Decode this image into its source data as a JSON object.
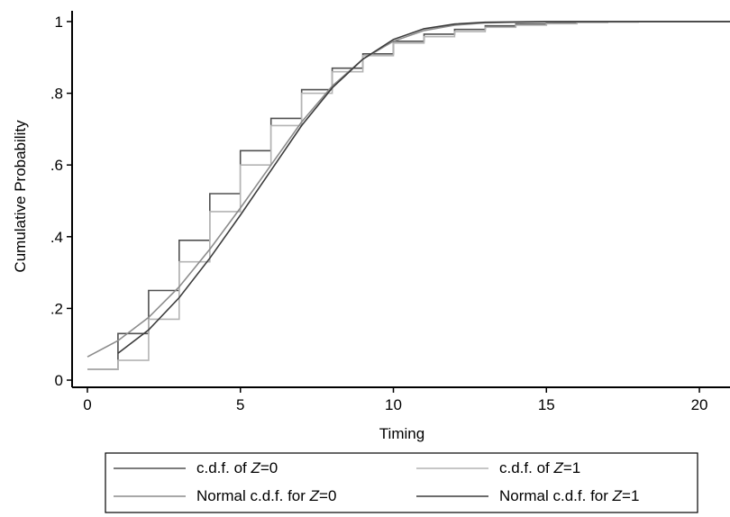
{
  "chart_data": {
    "type": "line",
    "title": "",
    "xlabel": "Timing",
    "ylabel": "Cumulative Probability",
    "xlim": [
      -0.5,
      21
    ],
    "ylim": [
      -0.02,
      1.03
    ],
    "x_ticks": [
      0,
      5,
      10,
      15,
      20
    ],
    "x_tick_labels": [
      "0",
      "5",
      "10",
      "15",
      "20"
    ],
    "y_ticks": [
      0,
      0.2,
      0.4,
      0.6,
      0.8,
      1
    ],
    "y_tick_labels": [
      "0",
      ".2",
      ".4",
      ".6",
      ".8",
      "1"
    ],
    "grid": false,
    "legend_position": "bottom",
    "series": [
      {
        "name": "c.d.f. of Z=0",
        "legend_label": "c.d.f. of ",
        "legend_var": "Z",
        "legend_suffix": "=0",
        "kind": "step",
        "color": "#505050",
        "x": [
          0,
          1,
          2,
          3,
          4,
          5,
          6,
          7,
          8,
          9,
          10,
          11,
          12,
          13,
          14,
          15,
          16,
          17,
          18,
          19,
          20,
          21
        ],
        "y": [
          0.03,
          0.13,
          0.25,
          0.39,
          0.52,
          0.64,
          0.73,
          0.81,
          0.87,
          0.91,
          0.945,
          0.965,
          0.978,
          0.988,
          0.993,
          0.996,
          0.998,
          0.999,
          1.0,
          1.0,
          1.0,
          1.0
        ]
      },
      {
        "name": "c.d.f. of Z=1",
        "legend_label": "c.d.f. of ",
        "legend_var": "Z",
        "legend_suffix": "=1",
        "kind": "step",
        "color": "#b4b4b4",
        "x": [
          0,
          1,
          2,
          3,
          4,
          5,
          6,
          7,
          8,
          9,
          10,
          11,
          12,
          13,
          14,
          15,
          16,
          17,
          18,
          19,
          20,
          21
        ],
        "y": [
          0.03,
          0.055,
          0.17,
          0.33,
          0.47,
          0.6,
          0.71,
          0.8,
          0.86,
          0.905,
          0.94,
          0.958,
          0.972,
          0.984,
          0.99,
          0.994,
          0.997,
          0.999,
          1.0,
          1.0,
          1.0,
          1.0
        ]
      },
      {
        "name": "Normal c.d.f. for Z=0",
        "legend_label": "Normal c.d.f. for ",
        "legend_var": "Z",
        "legend_suffix": "=0",
        "kind": "line",
        "color": "#8c8c8c",
        "x": [
          0,
          1,
          2,
          3,
          4,
          5,
          6,
          7,
          8,
          9,
          10,
          11,
          12,
          13,
          14,
          15,
          16,
          17,
          18,
          19,
          20,
          21
        ],
        "y": [
          0.065,
          0.11,
          0.175,
          0.26,
          0.365,
          0.48,
          0.6,
          0.72,
          0.82,
          0.895,
          0.945,
          0.975,
          0.99,
          0.996,
          0.998,
          0.999,
          1.0,
          1.0,
          1.0,
          1.0,
          1.0,
          1.0
        ]
      },
      {
        "name": "Normal c.d.f. for Z=1",
        "legend_label": "Normal c.d.f. for ",
        "legend_var": "Z",
        "legend_suffix": "=1",
        "kind": "line",
        "color": "#3c3c3c",
        "x": [
          1,
          2,
          3,
          4,
          5,
          6,
          7,
          8,
          9,
          10,
          11,
          12,
          13,
          14,
          15,
          16,
          17,
          18,
          19,
          20,
          21
        ],
        "y": [
          0.075,
          0.14,
          0.23,
          0.34,
          0.46,
          0.585,
          0.71,
          0.815,
          0.895,
          0.95,
          0.98,
          0.993,
          0.998,
          0.999,
          1.0,
          1.0,
          1.0,
          1.0,
          1.0,
          1.0,
          1.0
        ]
      }
    ]
  }
}
